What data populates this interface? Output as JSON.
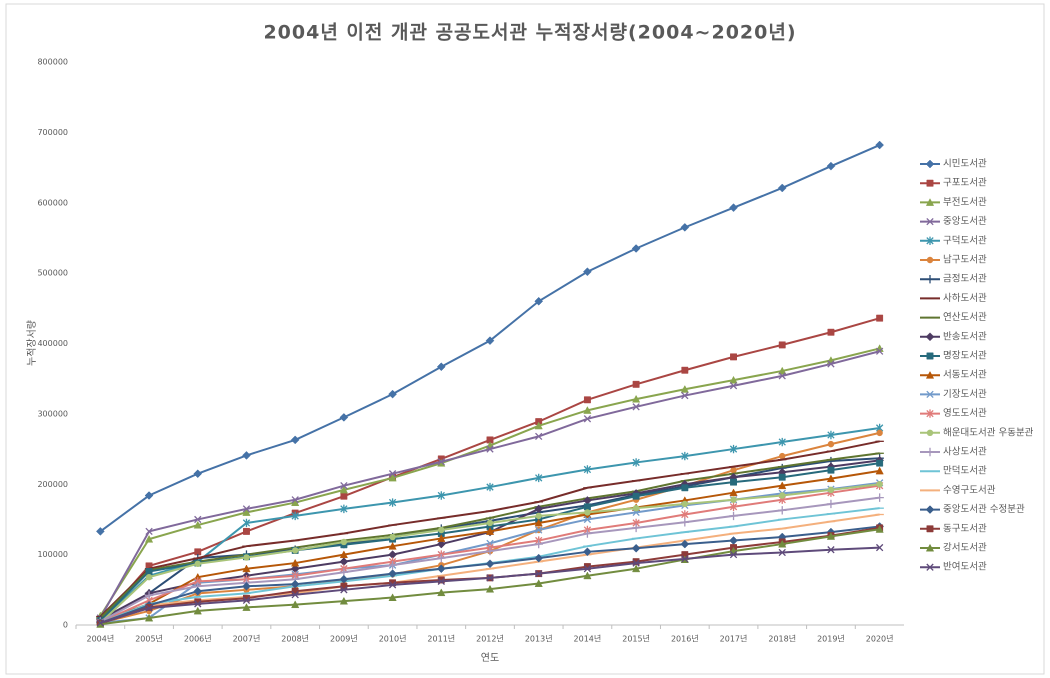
{
  "chart_data": {
    "type": "line",
    "title": "2004년 이전 개관 공공도서관 누적장서량(2004~2020년)",
    "x_label": "연도",
    "y_label": "누적장서량",
    "categories": [
      "2004년",
      "2005년",
      "2006년",
      "2007년",
      "2008년",
      "2009년",
      "2010년",
      "2011년",
      "2012년",
      "2013년",
      "2014년",
      "2015년",
      "2016년",
      "2017년",
      "2018년",
      "2019년",
      "2020년"
    ],
    "ylim": [
      0,
      800000
    ],
    "yticks": [
      0,
      100000,
      200000,
      300000,
      400000,
      500000,
      600000,
      700000,
      800000
    ],
    "grid": false,
    "legend": "right",
    "series": [
      {
        "name": "시민도서관",
        "color": "#4572A7",
        "marker": "diamond",
        "values": [
          133000,
          184000,
          215000,
          241000,
          263000,
          295000,
          328000,
          367000,
          404000,
          460000,
          502000,
          535000,
          565000,
          593000,
          621000,
          652000,
          682000
        ]
      },
      {
        "name": "구포도서관",
        "color": "#AA4643",
        "marker": "square",
        "values": [
          5000,
          84000,
          104000,
          133000,
          159000,
          183000,
          210000,
          236000,
          263000,
          289000,
          320000,
          342000,
          362000,
          381000,
          398000,
          416000,
          436000
        ]
      },
      {
        "name": "부전도서관",
        "color": "#89A54E",
        "marker": "triangle",
        "values": [
          13000,
          122000,
          142000,
          160000,
          174000,
          192000,
          209000,
          230000,
          255000,
          283000,
          305000,
          321000,
          335000,
          348000,
          361000,
          376000,
          393000
        ]
      },
      {
        "name": "중앙도서관",
        "color": "#80699B",
        "marker": "x",
        "values": [
          10000,
          133000,
          150000,
          165000,
          178000,
          198000,
          215000,
          232000,
          250000,
          268000,
          293000,
          310000,
          326000,
          340000,
          354000,
          371000,
          389000
        ]
      },
      {
        "name": "구덕도서관",
        "color": "#3D96AE",
        "marker": "star",
        "values": [
          5000,
          70000,
          90000,
          145000,
          155000,
          165000,
          174000,
          184000,
          196000,
          209000,
          221000,
          231000,
          240000,
          250000,
          260000,
          270000,
          280000
        ]
      },
      {
        "name": "남구도서관",
        "color": "#DB843D",
        "marker": "circle",
        "values": [
          3000,
          20000,
          45000,
          50000,
          55000,
          63000,
          72000,
          85000,
          105000,
          135000,
          160000,
          178000,
          198000,
          220000,
          240000,
          257000,
          273000
        ]
      },
      {
        "name": "금정도서관",
        "color": "#2C4D75",
        "marker": "plus",
        "values": [
          5000,
          45000,
          95000,
          100000,
          107000,
          115000,
          125000,
          137000,
          148000,
          160000,
          170000,
          185000,
          197000,
          210000,
          223000,
          233000,
          237000
        ]
      },
      {
        "name": "사하도서관",
        "color": "#772C2A",
        "marker": "dash",
        "values": [
          12000,
          80000,
          95000,
          112000,
          120000,
          130000,
          142000,
          152000,
          162000,
          175000,
          195000,
          205000,
          215000,
          225000,
          235000,
          247000,
          261000
        ]
      },
      {
        "name": "연산도서관",
        "color": "#5F7530",
        "marker": "dash",
        "values": [
          10000,
          78000,
          90000,
          100000,
          110000,
          120000,
          128000,
          138000,
          152000,
          168000,
          180000,
          190000,
          205000,
          215000,
          225000,
          235000,
          244000
        ]
      },
      {
        "name": "반송도서관",
        "color": "#4D3B62",
        "marker": "diamond",
        "values": [
          8000,
          45000,
          60000,
          70000,
          80000,
          90000,
          100000,
          115000,
          132000,
          165000,
          177000,
          187000,
          200000,
          210000,
          217000,
          225000,
          234000
        ]
      },
      {
        "name": "명장도서관",
        "color": "#276A7C",
        "marker": "square",
        "values": [
          6000,
          76000,
          88000,
          97000,
          106000,
          114000,
          122000,
          130000,
          140000,
          150000,
          168000,
          183000,
          195000,
          203000,
          210000,
          220000,
          230000
        ]
      },
      {
        "name": "서동도서관",
        "color": "#B65708",
        "marker": "triangle",
        "values": [
          5000,
          30000,
          68000,
          80000,
          88000,
          100000,
          112000,
          123000,
          133000,
          145000,
          157000,
          167000,
          177000,
          188000,
          198000,
          208000,
          219000
        ]
      },
      {
        "name": "기장도서관",
        "color": "#729ACA",
        "marker": "x",
        "values": [
          3000,
          10000,
          60000,
          65000,
          72000,
          80000,
          85000,
          100000,
          116000,
          135000,
          150000,
          160000,
          170000,
          178000,
          187000,
          193000,
          202000
        ]
      },
      {
        "name": "영도도서관",
        "color": "#E07B79",
        "marker": "star",
        "values": [
          4000,
          35000,
          62000,
          65000,
          70000,
          80000,
          90000,
          100000,
          110000,
          120000,
          135000,
          145000,
          157000,
          168000,
          178000,
          188000,
          198000
        ]
      },
      {
        "name": "해운대도서관 우동분관",
        "color": "#A9C479",
        "marker": "circle",
        "values": [
          3000,
          68000,
          87000,
          96000,
          106000,
          118000,
          125000,
          135000,
          145000,
          155000,
          160000,
          166000,
          172000,
          178000,
          184000,
          192000,
          200000
        ]
      },
      {
        "name": "사상도서관",
        "color": "#A797BC",
        "marker": "plus",
        "values": [
          5000,
          42000,
          55000,
          60000,
          65000,
          75000,
          85000,
          95000,
          105000,
          115000,
          130000,
          138000,
          146000,
          155000,
          163000,
          172000,
          181000
        ]
      },
      {
        "name": "만덕도서관",
        "color": "#6FC4D6",
        "marker": "dash",
        "values": [
          3000,
          30000,
          40000,
          45000,
          55000,
          62000,
          70000,
          80000,
          88000,
          97000,
          112000,
          123000,
          132000,
          140000,
          150000,
          158000,
          166000
        ]
      },
      {
        "name": "수영구도서관",
        "color": "#F4B07D",
        "marker": "dash",
        "values": [
          3000,
          28000,
          35000,
          40000,
          45000,
          55000,
          60000,
          70000,
          80000,
          90000,
          100000,
          110000,
          120000,
          130000,
          137000,
          147000,
          157000
        ]
      },
      {
        "name": "중앙도서관 수정분관",
        "color": "#3A5E8C",
        "marker": "diamond",
        "values": [
          3000,
          28000,
          48000,
          55000,
          58000,
          65000,
          73000,
          80000,
          87000,
          95000,
          104000,
          109000,
          115000,
          120000,
          125000,
          132000,
          140000
        ]
      },
      {
        "name": "동구도서관",
        "color": "#8D3B39",
        "marker": "square",
        "values": [
          2000,
          25000,
          33000,
          38000,
          48000,
          55000,
          60000,
          64000,
          67000,
          73000,
          83000,
          90000,
          100000,
          110000,
          118000,
          127000,
          138000
        ]
      },
      {
        "name": "강서도서관",
        "color": "#728C3F",
        "marker": "triangle",
        "values": [
          1000,
          10000,
          20000,
          25000,
          29000,
          34000,
          39000,
          46000,
          51000,
          59000,
          70000,
          80000,
          93000,
          105000,
          115000,
          126000,
          136000
        ]
      },
      {
        "name": "반여도서관",
        "color": "#5E4A7A",
        "marker": "x",
        "values": [
          3000,
          24000,
          30000,
          35000,
          43000,
          50000,
          57000,
          62000,
          67000,
          73000,
          80000,
          88000,
          94000,
          100000,
          103000,
          107000,
          110000
        ]
      }
    ]
  }
}
